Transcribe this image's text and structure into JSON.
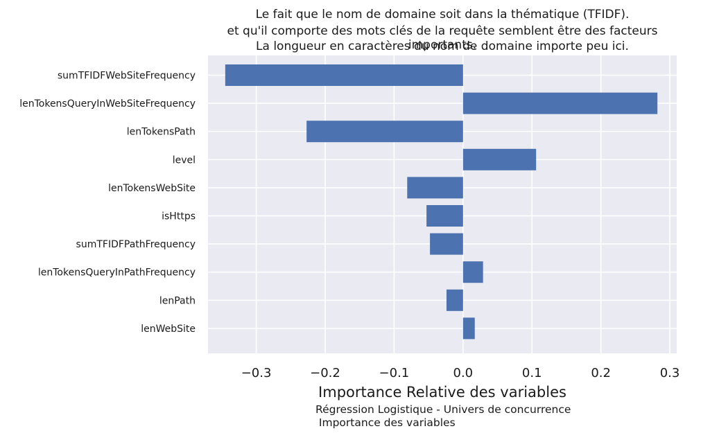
{
  "title_lines": [
    "Le fait que le nom de domaine soit dans la thématique (TFIDF).",
    "et qu'il comporte des mots clés de la requête semblent être des facteurs importants.",
    "La longueur en caractères du nom de domaine importe peu ici."
  ],
  "caption_lines": [
    "Régression Logistique - Univers de concurrence",
    " Importance des variables"
  ],
  "chart_data": {
    "type": "bar",
    "orientation": "horizontal",
    "xlabel": "Importance Relative des variables",
    "ylabel": "",
    "categories": [
      "sumTFIDFWebSiteFrequency",
      "lenTokensQueryInWebSiteFrequency",
      "lenTokensPath",
      "level",
      "lenTokensWebSite",
      "isHttps",
      "sumTFIDFPathFrequency",
      "lenTokensQueryInPathFrequency",
      "lenPath",
      "lenWebSite"
    ],
    "values": [
      -0.345,
      0.282,
      -0.227,
      0.106,
      -0.081,
      -0.053,
      -0.048,
      0.029,
      -0.024,
      0.017
    ],
    "xlim": [
      -0.37,
      0.31
    ],
    "xticks": [
      -0.3,
      -0.2,
      -0.1,
      0.0,
      0.1,
      0.2,
      0.3
    ],
    "xtick_labels": [
      "−0.3",
      "−0.2",
      "−0.1",
      "0.0",
      "0.1",
      "0.2",
      "0.3"
    ],
    "grid": true,
    "bar_color": "#4c72b0",
    "background_color": "#eaeaf2",
    "grid_color": "#ffffff"
  }
}
